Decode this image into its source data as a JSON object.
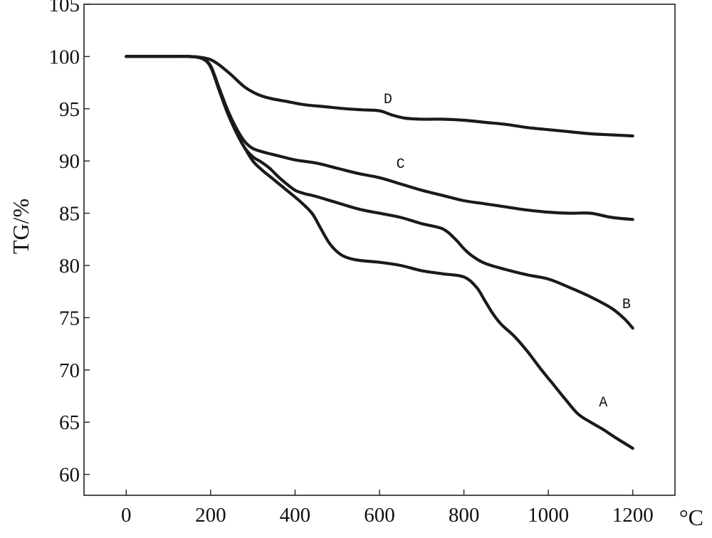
{
  "chart_data": {
    "type": "line",
    "xlabel": "°C",
    "ylabel": "TG/%",
    "xlim": [
      -100,
      1300
    ],
    "ylim": [
      58,
      105
    ],
    "x_ticks": [
      0,
      200,
      400,
      600,
      800,
      1000,
      1200
    ],
    "y_ticks": [
      60,
      65,
      70,
      75,
      80,
      85,
      90,
      95,
      100,
      105
    ],
    "grid": false,
    "legend": "none",
    "series": [
      {
        "name": "A",
        "label_at": [
          1130,
          67
        ],
        "x": [
          0,
          100,
          150,
          180,
          200,
          220,
          240,
          260,
          280,
          300,
          320,
          350,
          380,
          410,
          440,
          460,
          480,
          500,
          520,
          550,
          600,
          650,
          700,
          750,
          800,
          830,
          850,
          870,
          890,
          920,
          950,
          980,
          1010,
          1040,
          1070,
          1100,
          1130,
          1160,
          1200
        ],
        "y": [
          100,
          100,
          100,
          99.8,
          99.0,
          96.8,
          94.6,
          92.8,
          91.3,
          90.0,
          89.2,
          88.2,
          87.2,
          86.2,
          85.0,
          83.6,
          82.2,
          81.3,
          80.8,
          80.5,
          80.3,
          80.0,
          79.5,
          79.2,
          78.9,
          77.9,
          76.6,
          75.3,
          74.3,
          73.2,
          71.8,
          70.2,
          68.7,
          67.2,
          65.8,
          65.0,
          64.3,
          63.5,
          62.5
        ]
      },
      {
        "name": "B",
        "label_at": [
          1185,
          76.4
        ],
        "x": [
          0,
          100,
          150,
          180,
          200,
          220,
          240,
          260,
          280,
          300,
          320,
          340,
          360,
          380,
          400,
          420,
          450,
          500,
          550,
          600,
          650,
          700,
          750,
          780,
          800,
          820,
          850,
          900,
          950,
          1000,
          1050,
          1100,
          1150,
          1180,
          1200
        ],
        "y": [
          100,
          100,
          100,
          99.8,
          99.0,
          96.8,
          94.6,
          92.8,
          91.3,
          90.4,
          89.9,
          89.3,
          88.5,
          87.8,
          87.2,
          86.9,
          86.6,
          86.0,
          85.4,
          85.0,
          84.6,
          84.0,
          83.5,
          82.5,
          81.6,
          80.9,
          80.2,
          79.6,
          79.1,
          78.7,
          77.9,
          77.0,
          75.9,
          74.9,
          74.0
        ]
      },
      {
        "name": "C",
        "label_at": [
          650,
          89.8
        ],
        "x": [
          0,
          100,
          150,
          180,
          200,
          220,
          240,
          260,
          280,
          300,
          330,
          360,
          400,
          450,
          500,
          550,
          600,
          650,
          700,
          750,
          800,
          850,
          900,
          950,
          1000,
          1050,
          1100,
          1150,
          1200
        ],
        "y": [
          100,
          100,
          100,
          99.8,
          99.1,
          97.0,
          94.9,
          93.2,
          91.9,
          91.2,
          90.8,
          90.5,
          90.1,
          89.8,
          89.3,
          88.8,
          88.4,
          87.8,
          87.2,
          86.7,
          86.2,
          85.9,
          85.6,
          85.3,
          85.1,
          85.0,
          85.0,
          84.6,
          84.4
        ]
      },
      {
        "name": "D",
        "label_at": [
          620,
          96
        ],
        "x": [
          0,
          100,
          150,
          180,
          200,
          220,
          250,
          280,
          310,
          340,
          380,
          420,
          470,
          520,
          560,
          600,
          630,
          660,
          700,
          750,
          800,
          850,
          900,
          950,
          1000,
          1050,
          1100,
          1150,
          1200
        ],
        "y": [
          100,
          100,
          100,
          99.9,
          99.7,
          99.2,
          98.2,
          97.1,
          96.4,
          96.0,
          95.7,
          95.4,
          95.2,
          95.0,
          94.9,
          94.8,
          94.4,
          94.1,
          94.0,
          94.0,
          93.9,
          93.7,
          93.5,
          93.2,
          93.0,
          92.8,
          92.6,
          92.5,
          92.4
        ]
      }
    ]
  }
}
